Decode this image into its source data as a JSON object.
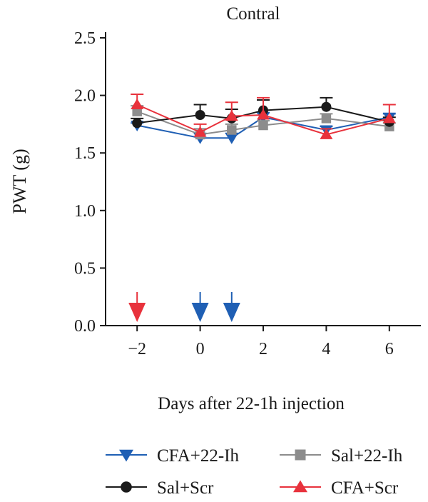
{
  "chart_data": {
    "type": "line",
    "title": "Contral",
    "xlabel": "Days after 22-1h injection",
    "ylabel": "PWT (g)",
    "xlim": [
      -3,
      7
    ],
    "ylim": [
      0,
      2.5
    ],
    "x_ticks": [
      -2,
      0,
      2,
      4,
      6
    ],
    "x_tick_labels": [
      "−2",
      "0",
      "2",
      "4",
      "6"
    ],
    "y_ticks": [
      0,
      0.5,
      1,
      1.5,
      2,
      2.5
    ],
    "y_tick_labels": [
      "0.0",
      "0.5",
      "1.0",
      "1.5",
      "2.0",
      "2.5"
    ],
    "grid": false,
    "legend_position": "bottom",
    "series": [
      {
        "name": "CFA+22-Ih",
        "color": "#1f5fb4",
        "marker": "triangle-down",
        "x": [
          -2,
          0,
          1,
          2,
          4,
          6
        ],
        "y": [
          1.74,
          1.63,
          1.63,
          1.81,
          1.7,
          1.81
        ],
        "err": [
          0.02,
          0.04,
          0.04,
          0.04,
          0.03,
          0.03
        ]
      },
      {
        "name": "Sal+22-Ih",
        "color": "#8c8c8c",
        "marker": "square",
        "x": [
          -2,
          0,
          1,
          2,
          4,
          6
        ],
        "y": [
          1.86,
          1.66,
          1.7,
          1.74,
          1.8,
          1.73
        ],
        "err": [
          0.05,
          0.05,
          0.05,
          0.04,
          0.04,
          0.03
        ]
      },
      {
        "name": "Sal+Scr",
        "color": "#1a1a1a",
        "marker": "circle",
        "x": [
          -2,
          0,
          1,
          2,
          4,
          6
        ],
        "y": [
          1.76,
          1.83,
          1.8,
          1.87,
          1.9,
          1.77
        ],
        "err": [
          0.04,
          0.09,
          0.08,
          0.09,
          0.08,
          0.04
        ]
      },
      {
        "name": "CFA+Scr",
        "color": "#e8323c",
        "marker": "triangle-up",
        "x": [
          -2,
          0,
          1,
          2,
          4,
          6
        ],
        "y": [
          1.92,
          1.68,
          1.82,
          1.83,
          1.66,
          1.8
        ],
        "err": [
          0.09,
          0.07,
          0.12,
          0.15,
          0.05,
          0.12
        ]
      }
    ],
    "injection_arrows": [
      {
        "x": -2,
        "color": "#e8323c"
      },
      {
        "x": 0,
        "color": "#1f5fb4"
      },
      {
        "x": 1,
        "color": "#1f5fb4"
      }
    ]
  }
}
